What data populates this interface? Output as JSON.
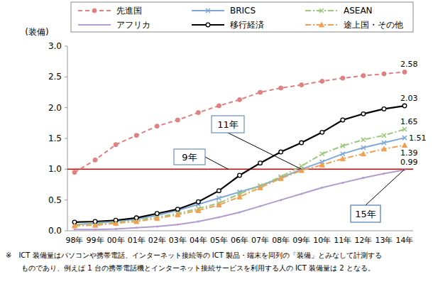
{
  "chart_data": {
    "type": "line",
    "y_label": "(装備)",
    "categories": [
      "98年",
      "99年",
      "00年",
      "01年",
      "02年",
      "03年",
      "04年",
      "05年",
      "06年",
      "07年",
      "08年",
      "09年",
      "10年",
      "11年",
      "12年",
      "13年",
      "14年"
    ],
    "ylim": [
      0,
      3
    ],
    "yticks": [
      {
        "value": 0,
        "label": "0.0"
      },
      0.5,
      {
        "value": 1,
        "label": "1.0"
      },
      1.5,
      {
        "value": 2,
        "label": "2.0"
      },
      2.5,
      {
        "value": 3,
        "label": "3.0"
      }
    ],
    "grid": false,
    "legend": "top",
    "hline": 1,
    "annotations": [
      {
        "text": "9年",
        "x": "07年"
      },
      {
        "text": "11年",
        "x": "09年"
      },
      {
        "text": "15年",
        "x": "14年"
      }
    ],
    "series": [
      {
        "name": "先進国",
        "color": "#e08080",
        "marker": "circle",
        "line_style": "dashed",
        "values": [
          0.95,
          1.15,
          1.4,
          1.55,
          1.7,
          1.8,
          1.92,
          2.03,
          2.13,
          2.25,
          2.32,
          2.37,
          2.43,
          2.48,
          2.52,
          2.55,
          2.58
        ],
        "value_labels": [
          null,
          null,
          null,
          null,
          null,
          null,
          null,
          null,
          null,
          null,
          null,
          null,
          null,
          null,
          null,
          null,
          "2.58"
        ]
      },
      {
        "name": "BRICS",
        "color": "#7fa8d8",
        "marker": "x",
        "line_style": "solid",
        "values": [
          0.1,
          0.12,
          0.15,
          0.19,
          0.25,
          0.33,
          0.43,
          0.53,
          0.63,
          0.73,
          0.86,
          1.0,
          1.12,
          1.25,
          1.35,
          1.43,
          1.51
        ],
        "value_labels": [
          null,
          null,
          null,
          null,
          null,
          null,
          null,
          null,
          null,
          null,
          null,
          null,
          null,
          null,
          null,
          null,
          "1.51"
        ]
      },
      {
        "name": "ASEAN",
        "color": "#9bc77a",
        "marker": "x",
        "line_style": "dashdot",
        "values": [
          0.1,
          0.11,
          0.14,
          0.17,
          0.22,
          0.28,
          0.36,
          0.45,
          0.6,
          0.73,
          0.88,
          1.05,
          1.25,
          1.38,
          1.48,
          1.55,
          1.65
        ],
        "value_labels": [
          null,
          null,
          null,
          null,
          null,
          null,
          null,
          null,
          null,
          null,
          null,
          null,
          null,
          null,
          null,
          null,
          "1.65"
        ]
      },
      {
        "name": "アフリカ",
        "color": "#b29ccf",
        "marker": "none",
        "line_style": "solid",
        "values": [
          0.02,
          0.02,
          0.03,
          0.05,
          0.07,
          0.1,
          0.15,
          0.22,
          0.3,
          0.4,
          0.5,
          0.6,
          0.7,
          0.78,
          0.86,
          0.93,
          0.99
        ],
        "value_labels": [
          null,
          null,
          null,
          null,
          null,
          null,
          null,
          null,
          null,
          null,
          null,
          null,
          null,
          null,
          null,
          null,
          "0.99"
        ]
      },
      {
        "name": "移行経済",
        "color": "#000000",
        "marker": "circle_open",
        "line_style": "solid",
        "values": [
          0.14,
          0.15,
          0.17,
          0.21,
          0.28,
          0.35,
          0.47,
          0.65,
          0.9,
          1.1,
          1.28,
          1.43,
          1.6,
          1.8,
          1.9,
          1.98,
          2.03
        ],
        "value_labels": [
          null,
          null,
          null,
          null,
          null,
          null,
          null,
          null,
          null,
          null,
          null,
          null,
          null,
          null,
          null,
          null,
          "2.03"
        ]
      },
      {
        "name": "途上国・その他",
        "color": "#f0a050",
        "marker": "triangle",
        "line_style": "dashdot",
        "values": [
          0.08,
          0.09,
          0.12,
          0.15,
          0.2,
          0.26,
          0.33,
          0.42,
          0.55,
          0.7,
          0.85,
          0.98,
          1.07,
          1.17,
          1.25,
          1.33,
          1.39
        ],
        "value_labels": [
          null,
          null,
          null,
          null,
          null,
          null,
          null,
          null,
          null,
          null,
          null,
          null,
          null,
          null,
          null,
          null,
          "1.39"
        ]
      }
    ],
    "note": [
      "※　ICT 装備量はパソコンや携帯電話、インターネット接続等の ICT 製品・端末を同列の「装備」とみなして計測する",
      "ものであり、例えば 1 台の携帯電話機とインターネット接続サービスを利用する人の ICT 装備量は 2 となる。"
    ]
  }
}
